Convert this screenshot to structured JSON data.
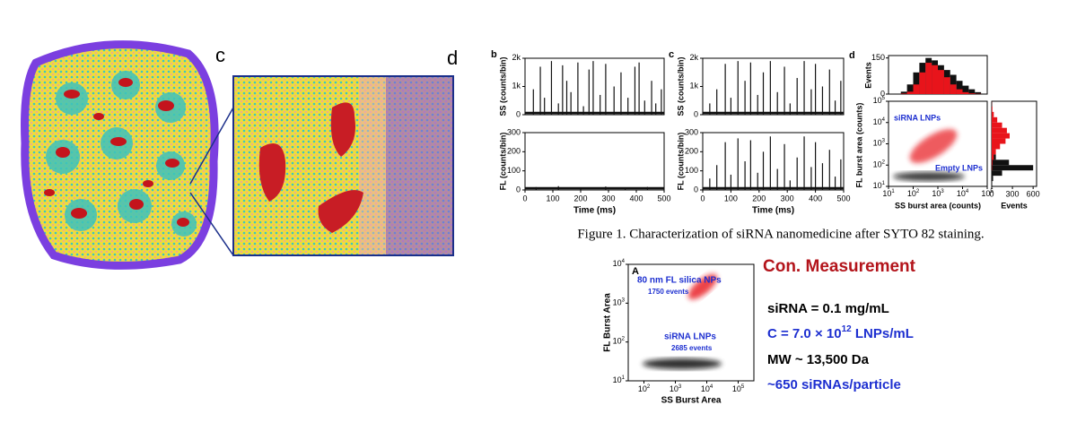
{
  "left_figure": {
    "label_c": "c",
    "label_d": "d"
  },
  "panel_b": {
    "label": "b",
    "xlabel": "Time (ms)",
    "xlim": [
      0,
      500
    ],
    "xticks": [
      0,
      100,
      200,
      300,
      400,
      500
    ],
    "ss": {
      "ylabel": "SS (counts/bin)",
      "ylim": [
        0,
        2000
      ],
      "yticks": [
        0,
        {
          "value": 1000,
          "label": "1k"
        },
        {
          "value": 2000,
          "label": "2k"
        }
      ],
      "spikes_x": [
        30,
        55,
        70,
        95,
        120,
        135,
        150,
        165,
        190,
        210,
        230,
        245,
        270,
        290,
        320,
        345,
        370,
        395,
        410,
        430,
        455,
        470,
        490
      ],
      "spikes": [
        900,
        1700,
        600,
        1900,
        400,
        1750,
        1200,
        800,
        1850,
        300,
        1600,
        1900,
        700,
        1800,
        1000,
        1500,
        600,
        1700,
        1850,
        500,
        1200,
        400,
        900
      ]
    },
    "fl": {
      "ylabel": "FL (counts/bin)",
      "ylim": [
        0,
        300
      ],
      "yticks": [
        0,
        100,
        200,
        300
      ],
      "spikes_x": [
        40,
        120,
        200,
        290,
        360,
        440
      ],
      "spikes": [
        15,
        20,
        12,
        18,
        14,
        16
      ]
    }
  },
  "panel_c": {
    "label": "c",
    "xlabel": "Time (ms)",
    "xlim": [
      0,
      500
    ],
    "xticks": [
      0,
      100,
      200,
      300,
      400,
      500
    ],
    "ss": {
      "ylabel": "SS (counts/bin)",
      "ylim": [
        0,
        2000
      ],
      "yticks": [
        0,
        {
          "value": 1000,
          "label": "1k"
        },
        {
          "value": 2000,
          "label": "2k"
        }
      ],
      "spikes_x": [
        25,
        50,
        80,
        100,
        125,
        150,
        170,
        195,
        215,
        240,
        265,
        290,
        310,
        335,
        360,
        385,
        400,
        425,
        450,
        470,
        490
      ],
      "spikes": [
        400,
        900,
        1800,
        600,
        1900,
        1200,
        1850,
        700,
        1500,
        1900,
        800,
        1700,
        400,
        1300,
        1900,
        900,
        1800,
        1000,
        1600,
        500,
        1200
      ]
    },
    "fl": {
      "ylabel": "FL (counts/bin)",
      "ylim": [
        0,
        300
      ],
      "yticks": [
        0,
        100,
        200,
        300
      ],
      "spikes_x": [
        25,
        50,
        80,
        100,
        125,
        150,
        170,
        195,
        215,
        240,
        265,
        290,
        310,
        335,
        360,
        385,
        400,
        425,
        450,
        470,
        490
      ],
      "spikes": [
        60,
        130,
        250,
        80,
        270,
        150,
        260,
        90,
        200,
        280,
        110,
        240,
        50,
        170,
        280,
        120,
        250,
        140,
        210,
        70,
        160
      ]
    }
  },
  "panel_d": {
    "label": "d",
    "xlabel": "SS burst area (counts)",
    "ylabel": "FL burst area (counts)",
    "xlim": [
      10,
      100000
    ],
    "ylim": [
      10,
      100000
    ],
    "log": true,
    "xticks": [
      {
        "value": 10,
        "label": "10",
        "sup": "1"
      },
      {
        "value": 100,
        "label": "10",
        "sup": "2"
      },
      {
        "value": 1000,
        "label": "10",
        "sup": "3"
      },
      {
        "value": 10000,
        "label": "10",
        "sup": "4"
      },
      {
        "value": 100000,
        "label": "10",
        "sup": "5"
      }
    ],
    "yticks": [
      {
        "value": 10,
        "label": "10",
        "sup": "1"
      },
      {
        "value": 100,
        "label": "10",
        "sup": "2"
      },
      {
        "value": 1000,
        "label": "10",
        "sup": "3"
      },
      {
        "value": 10000,
        "label": "10",
        "sup": "4"
      },
      {
        "value": 100000,
        "label": "10",
        "sup": "5"
      }
    ],
    "annotations": [
      "siRNA LNPs",
      "Empty LNPs"
    ],
    "top_hist": {
      "ylabel": "Events",
      "ylim": [
        0,
        160
      ],
      "yticks": [
        0,
        150
      ],
      "bins": [
        10,
        17.8,
        31.6,
        56.2,
        100,
        178,
        316,
        562,
        1000,
        1778,
        3162,
        5623,
        10000,
        17783,
        31623,
        56234,
        100000
      ],
      "series": [
        {
          "color": "#111111",
          "values": [
            0,
            2,
            10,
            40,
            90,
            130,
            150,
            140,
            120,
            100,
            80,
            55,
            35,
            20,
            8,
            2
          ]
        },
        {
          "color": "#e8141b",
          "values": [
            0,
            0,
            2,
            10,
            40,
            90,
            130,
            120,
            100,
            70,
            40,
            20,
            8,
            3,
            1,
            0
          ]
        }
      ]
    },
    "right_hist": {
      "xlabel": "Events",
      "xlim": [
        0,
        650
      ],
      "xticks": [
        0,
        300,
        600
      ],
      "bins": [
        10,
        17.8,
        31.6,
        56.2,
        100,
        178,
        316,
        562,
        1000,
        1778,
        3162,
        5623,
        10000,
        17783,
        31623,
        56234,
        100000
      ],
      "series": [
        {
          "color": "#111111",
          "values": [
            0,
            20,
            150,
            600,
            250,
            60,
            20,
            10,
            5,
            5,
            5,
            5,
            3,
            2,
            1,
            0
          ]
        },
        {
          "color": "#e8141b",
          "values": [
            0,
            0,
            0,
            5,
            10,
            30,
            60,
            120,
            200,
            260,
            220,
            150,
            80,
            30,
            10,
            2
          ]
        }
      ]
    }
  },
  "caption": "Figure 1. Characterization of siRNA nanomedicine after SYTO 82 staining.",
  "panel_A": {
    "label": "A",
    "xlabel": "SS Burst Area",
    "ylabel": "FL Burst Area",
    "xlim": [
      31.6,
      316228
    ],
    "ylim": [
      10,
      10000
    ],
    "xticks": [
      {
        "value": 100,
        "label": "10",
        "sup": "2"
      },
      {
        "value": 1000,
        "label": "10",
        "sup": "3"
      },
      {
        "value": 10000,
        "label": "10",
        "sup": "4"
      },
      {
        "value": 100000,
        "label": "10",
        "sup": "5"
      }
    ],
    "yticks": [
      {
        "value": 10,
        "label": "10",
        "sup": "1"
      },
      {
        "value": 100,
        "label": "10",
        "sup": "2"
      },
      {
        "value": 1000,
        "label": "10",
        "sup": "3"
      },
      {
        "value": 10000,
        "label": "10",
        "sup": "4"
      }
    ],
    "annotations": [
      "80 nm FL silica NPs",
      "1750 events",
      "siRNA LNPs",
      "2685 events"
    ]
  },
  "measurement": {
    "title": "Con. Measurement",
    "line1": "siRNA = 0.1 mg/mL",
    "line2": {
      "pre": "C = 7.0 × 10",
      "sup": "12",
      "post": " LNPs/mL"
    },
    "line3": "MW ~ 13,500 Da",
    "line4": "~650 siRNAs/particle"
  }
}
